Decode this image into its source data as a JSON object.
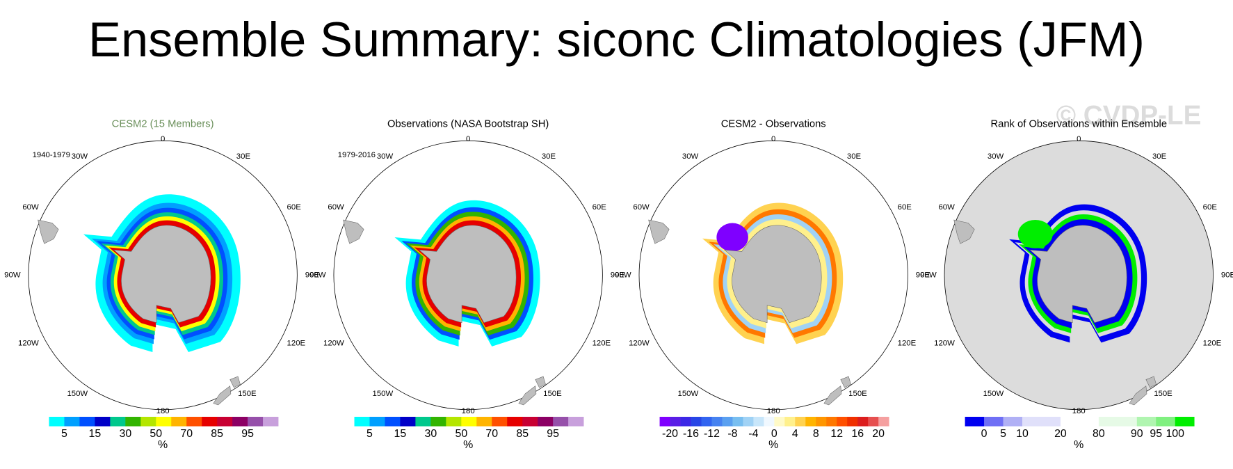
{
  "title": "Ensemble Summary: siconc Climatologies (JFM)",
  "watermark": "© CVDP-LE",
  "longitude_labels": [
    "0",
    "30E",
    "60E",
    "90E",
    "120E",
    "150E",
    "180",
    "150W",
    "120W",
    "90W",
    "60W",
    "30W"
  ],
  "panels": [
    {
      "title": "CESM2 (15 Members)",
      "title_color": "#6a8f5a",
      "period": "1940-1979",
      "unit": "%",
      "colorbar": {
        "colors": [
          "#00ffff",
          "#00a0ff",
          "#0050ff",
          "#0000c8",
          "#00c88c",
          "#32b400",
          "#b4e600",
          "#ffff00",
          "#ffb400",
          "#ff5000",
          "#e60000",
          "#c80032",
          "#8c0064",
          "#9650aa",
          "#c8a0dc"
        ],
        "ticks": [
          5,
          15,
          30,
          50,
          70,
          85,
          95
        ]
      }
    },
    {
      "title": "Observations (NASA Bootstrap SH)",
      "title_color": "#000000",
      "period": "1979-2016",
      "unit": "%",
      "colorbar": {
        "colors": [
          "#00ffff",
          "#00a0ff",
          "#0050ff",
          "#0000c8",
          "#00c88c",
          "#32b400",
          "#b4e600",
          "#ffff00",
          "#ffb400",
          "#ff5000",
          "#e60000",
          "#c80032",
          "#8c0064",
          "#9650aa",
          "#c8a0dc"
        ],
        "ticks": [
          5,
          15,
          30,
          50,
          70,
          85,
          95
        ]
      }
    },
    {
      "title": "CESM2 - Observations",
      "title_color": "#000000",
      "unit": "%",
      "colorbar": {
        "colors": [
          "#7f00ff",
          "#5a1ee6",
          "#3c28e6",
          "#2846e6",
          "#3264f0",
          "#4682f0",
          "#5aa0f0",
          "#78bef0",
          "#a0d2f5",
          "#c8e6fa",
          "#f0f8ff",
          "#fffac8",
          "#fff08c",
          "#ffd250",
          "#ffb400",
          "#ff9600",
          "#ff7800",
          "#ff5000",
          "#f03000",
          "#dc1e1e",
          "#e65050",
          "#f5a0a0"
        ],
        "ticks": [
          -20,
          -16,
          -12,
          -8,
          -4,
          0,
          4,
          8,
          12,
          16,
          20
        ]
      }
    },
    {
      "title": "Rank of Observations within Ensemble",
      "title_color": "#000000",
      "unit": "%",
      "colorbar": {
        "colors": [
          "#0000f0",
          "#6f6ff5",
          "#b0b0f5",
          "#e0e0fa",
          "#e0e0fa",
          "#ffffff",
          "#ffffff",
          "#e6fae6",
          "#e6fae6",
          "#b0f5b0",
          "#80f080",
          "#00ee00"
        ],
        "ticks": [
          0,
          5,
          10,
          20,
          80,
          90,
          95,
          100
        ]
      }
    }
  ]
}
